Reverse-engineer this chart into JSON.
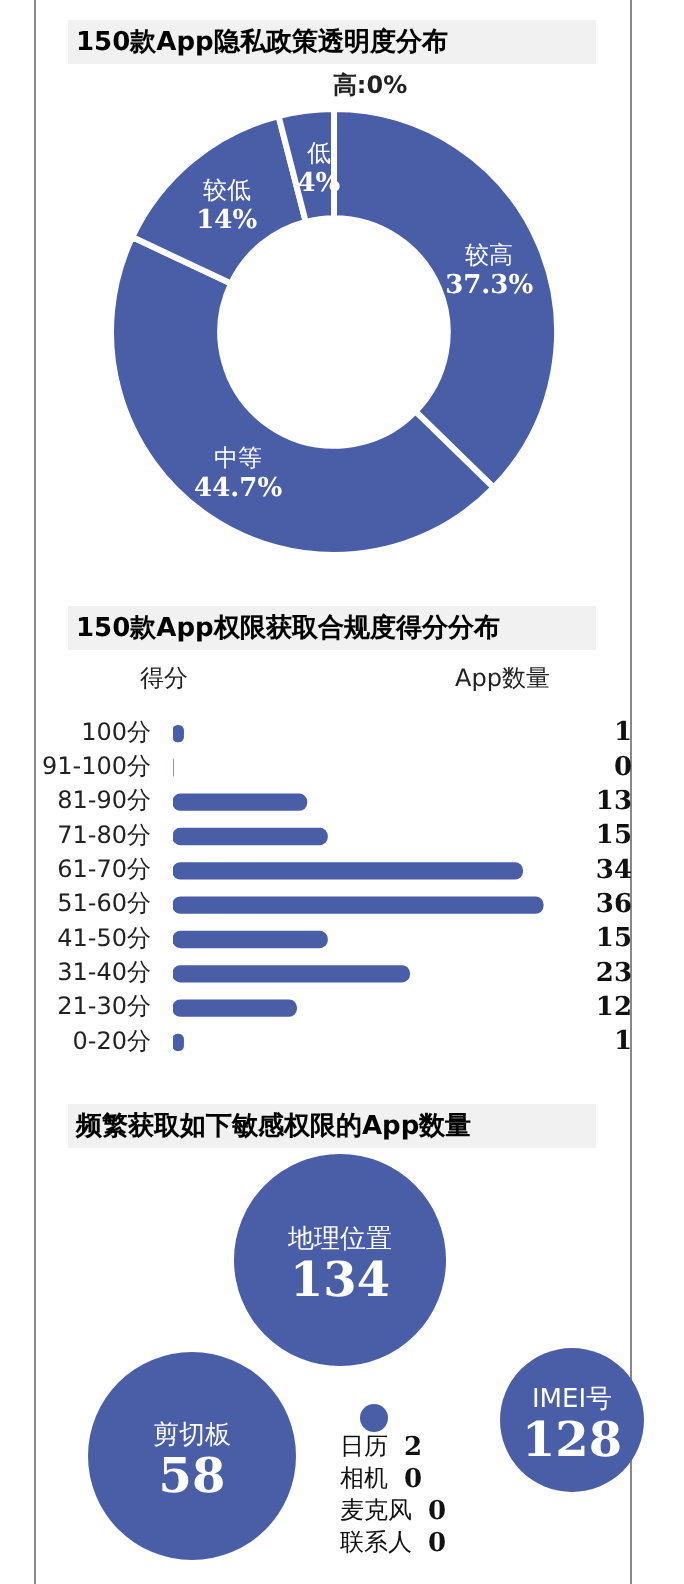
{
  "chart_data": [
    {
      "type": "donut",
      "title": "150款App隐私政策透明度分布",
      "categories": [
        "较高",
        "中等",
        "较低",
        "低",
        null
      ],
      "values": [
        37.3,
        44.7,
        14,
        4,
        0
      ],
      "colors": [
        "#4a5ea8",
        "#4a5ea8",
        "#4a5ea8",
        "#4a5ea8",
        "#4a5ea8"
      ],
      "value_labels": [
        "37.3%",
        "44.7%",
        "14%",
        "4%",
        null
      ],
      "annotations": [
        "高:0%"
      ]
    },
    {
      "type": "bar",
      "orientation": "horizontal",
      "title": "150款App权限获取合规度得分分布",
      "ylabel": "得分",
      "xlabel": "App数量",
      "categories": [
        "100分",
        "91-100分",
        "81-90分",
        "71-80分",
        "61-70分",
        "51-60分",
        "41-50分",
        "31-40分",
        "21-30分",
        "0-20分"
      ],
      "values": [
        1,
        0,
        13,
        15,
        34,
        36,
        15,
        23,
        12,
        1
      ],
      "color": "#4a5ea8",
      "data_labels": true
    },
    {
      "type": "other",
      "title": "频繁获取如下敏感权限的App数量",
      "categories": [
        "地理位置",
        "IMEI号",
        "剪切板",
        "日历",
        "相机",
        "麦克风",
        "联系人"
      ],
      "values": [
        134,
        128,
        58,
        2,
        0,
        0,
        0
      ],
      "color": "#4a5ea8",
      "data_labels": true
    }
  ]
}
